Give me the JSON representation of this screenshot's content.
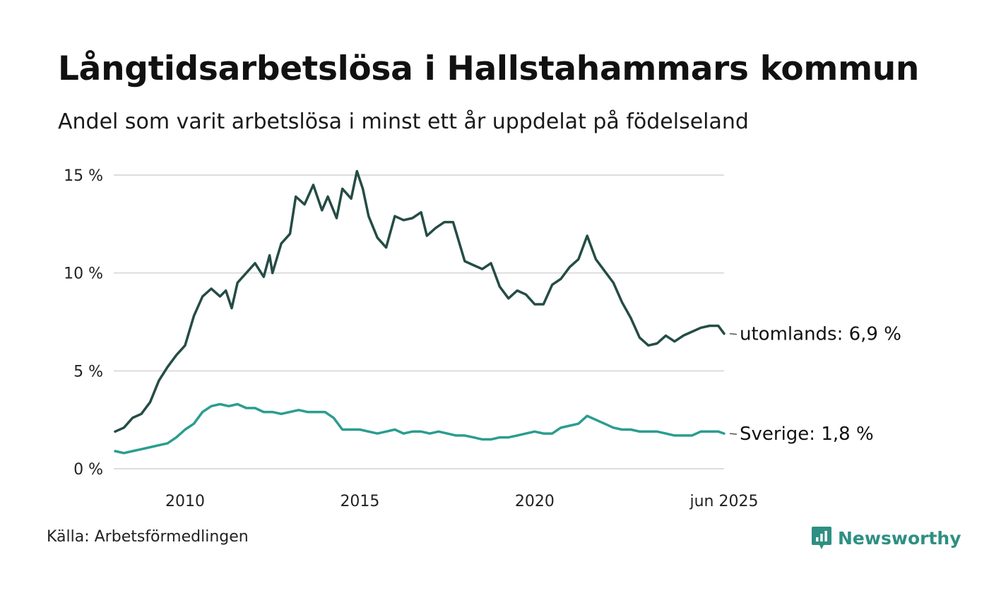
{
  "title": "Långtidsarbetslösa i Hallstahammars kommun",
  "subtitle": "Andel som varit arbetslösa i minst ett år uppdelat på födelseland",
  "source": "Källa: Arbetsförmedlingen",
  "brand": {
    "name": "Newsworthy",
    "icon": "newsworthy-logo-icon",
    "color": "#2f8f83"
  },
  "chart_data": {
    "type": "line",
    "title": "Långtidsarbetslösa i Hallstahammars kommun",
    "subtitle": "Andel som varit arbetslösa i minst ett år uppdelat på födelseland",
    "x_start": "2008-01",
    "x_end": "2025-06",
    "x_tick_labels": [
      {
        "x": "2010-01",
        "label": "2010"
      },
      {
        "x": "2015-01",
        "label": "2015"
      },
      {
        "x": "2020-01",
        "label": "2020"
      },
      {
        "x": "2025-06",
        "label": "jun 2025"
      }
    ],
    "y_ticks": [
      0,
      5,
      10,
      15
    ],
    "y_tick_labels": [
      "0 %",
      "5 %",
      "10 %",
      "15 %"
    ],
    "ylim": [
      0,
      15
    ],
    "grid": true,
    "legend": "none",
    "series": [
      {
        "name": "utomlands",
        "end_label": "utomlands: 6,9 %",
        "color": "#244c45",
        "points": [
          [
            "2008-01",
            1.9
          ],
          [
            "2008-04",
            2.1
          ],
          [
            "2008-07",
            2.6
          ],
          [
            "2008-10",
            2.8
          ],
          [
            "2009-01",
            3.4
          ],
          [
            "2009-04",
            4.5
          ],
          [
            "2009-07",
            5.2
          ],
          [
            "2009-10",
            5.8
          ],
          [
            "2010-01",
            6.3
          ],
          [
            "2010-04",
            7.8
          ],
          [
            "2010-07",
            8.8
          ],
          [
            "2010-10",
            9.2
          ],
          [
            "2011-01",
            8.8
          ],
          [
            "2011-03",
            9.1
          ],
          [
            "2011-05",
            8.2
          ],
          [
            "2011-07",
            9.5
          ],
          [
            "2011-10",
            10.0
          ],
          [
            "2012-01",
            10.5
          ],
          [
            "2012-04",
            9.8
          ],
          [
            "2012-06",
            10.9
          ],
          [
            "2012-07",
            10.0
          ],
          [
            "2012-10",
            11.5
          ],
          [
            "2013-01",
            12.0
          ],
          [
            "2013-03",
            13.9
          ],
          [
            "2013-06",
            13.5
          ],
          [
            "2013-09",
            14.5
          ],
          [
            "2013-12",
            13.2
          ],
          [
            "2014-02",
            13.9
          ],
          [
            "2014-05",
            12.8
          ],
          [
            "2014-07",
            14.3
          ],
          [
            "2014-10",
            13.8
          ],
          [
            "2014-12",
            15.2
          ],
          [
            "2015-02",
            14.3
          ],
          [
            "2015-04",
            12.9
          ],
          [
            "2015-07",
            11.8
          ],
          [
            "2015-10",
            11.3
          ],
          [
            "2016-01",
            12.9
          ],
          [
            "2016-04",
            12.7
          ],
          [
            "2016-07",
            12.8
          ],
          [
            "2016-10",
            13.1
          ],
          [
            "2016-12",
            11.9
          ],
          [
            "2017-03",
            12.3
          ],
          [
            "2017-06",
            12.6
          ],
          [
            "2017-09",
            12.6
          ],
          [
            "2018-01",
            10.6
          ],
          [
            "2018-04",
            10.4
          ],
          [
            "2018-07",
            10.2
          ],
          [
            "2018-10",
            10.5
          ],
          [
            "2019-01",
            9.3
          ],
          [
            "2019-04",
            8.7
          ],
          [
            "2019-07",
            9.1
          ],
          [
            "2019-10",
            8.9
          ],
          [
            "2020-01",
            8.4
          ],
          [
            "2020-04",
            8.4
          ],
          [
            "2020-07",
            9.4
          ],
          [
            "2020-10",
            9.7
          ],
          [
            "2021-01",
            10.3
          ],
          [
            "2021-04",
            10.7
          ],
          [
            "2021-07",
            11.9
          ],
          [
            "2021-10",
            10.7
          ],
          [
            "2022-01",
            10.1
          ],
          [
            "2022-04",
            9.5
          ],
          [
            "2022-07",
            8.5
          ],
          [
            "2022-10",
            7.7
          ],
          [
            "2023-01",
            6.7
          ],
          [
            "2023-04",
            6.3
          ],
          [
            "2023-07",
            6.4
          ],
          [
            "2023-10",
            6.8
          ],
          [
            "2024-01",
            6.5
          ],
          [
            "2024-04",
            6.8
          ],
          [
            "2024-07",
            7.0
          ],
          [
            "2024-10",
            7.2
          ],
          [
            "2025-01",
            7.3
          ],
          [
            "2025-04",
            7.3
          ],
          [
            "2025-06",
            6.9
          ]
        ]
      },
      {
        "name": "Sverige",
        "end_label": "Sverige: 1,8 %",
        "color": "#2a9d8f",
        "points": [
          [
            "2008-01",
            0.9
          ],
          [
            "2008-04",
            0.8
          ],
          [
            "2008-07",
            0.9
          ],
          [
            "2008-10",
            1.0
          ],
          [
            "2009-01",
            1.1
          ],
          [
            "2009-04",
            1.2
          ],
          [
            "2009-07",
            1.3
          ],
          [
            "2009-10",
            1.6
          ],
          [
            "2010-01",
            2.0
          ],
          [
            "2010-04",
            2.3
          ],
          [
            "2010-07",
            2.9
          ],
          [
            "2010-10",
            3.2
          ],
          [
            "2011-01",
            3.3
          ],
          [
            "2011-04",
            3.2
          ],
          [
            "2011-07",
            3.3
          ],
          [
            "2011-10",
            3.1
          ],
          [
            "2012-01",
            3.1
          ],
          [
            "2012-04",
            2.9
          ],
          [
            "2012-07",
            2.9
          ],
          [
            "2012-10",
            2.8
          ],
          [
            "2013-01",
            2.9
          ],
          [
            "2013-04",
            3.0
          ],
          [
            "2013-07",
            2.9
          ],
          [
            "2013-10",
            2.9
          ],
          [
            "2014-01",
            2.9
          ],
          [
            "2014-04",
            2.6
          ],
          [
            "2014-07",
            2.0
          ],
          [
            "2014-10",
            2.0
          ],
          [
            "2015-01",
            2.0
          ],
          [
            "2015-04",
            1.9
          ],
          [
            "2015-07",
            1.8
          ],
          [
            "2015-10",
            1.9
          ],
          [
            "2016-01",
            2.0
          ],
          [
            "2016-04",
            1.8
          ],
          [
            "2016-07",
            1.9
          ],
          [
            "2016-10",
            1.9
          ],
          [
            "2017-01",
            1.8
          ],
          [
            "2017-04",
            1.9
          ],
          [
            "2017-07",
            1.8
          ],
          [
            "2017-10",
            1.7
          ],
          [
            "2018-01",
            1.7
          ],
          [
            "2018-04",
            1.6
          ],
          [
            "2018-07",
            1.5
          ],
          [
            "2018-10",
            1.5
          ],
          [
            "2019-01",
            1.6
          ],
          [
            "2019-04",
            1.6
          ],
          [
            "2019-07",
            1.7
          ],
          [
            "2019-10",
            1.8
          ],
          [
            "2020-01",
            1.9
          ],
          [
            "2020-04",
            1.8
          ],
          [
            "2020-07",
            1.8
          ],
          [
            "2020-10",
            2.1
          ],
          [
            "2021-01",
            2.2
          ],
          [
            "2021-04",
            2.3
          ],
          [
            "2021-07",
            2.7
          ],
          [
            "2021-10",
            2.5
          ],
          [
            "2022-01",
            2.3
          ],
          [
            "2022-04",
            2.1
          ],
          [
            "2022-07",
            2.0
          ],
          [
            "2022-10",
            2.0
          ],
          [
            "2023-01",
            1.9
          ],
          [
            "2023-04",
            1.9
          ],
          [
            "2023-07",
            1.9
          ],
          [
            "2023-10",
            1.8
          ],
          [
            "2024-01",
            1.7
          ],
          [
            "2024-04",
            1.7
          ],
          [
            "2024-07",
            1.7
          ],
          [
            "2024-10",
            1.9
          ],
          [
            "2025-01",
            1.9
          ],
          [
            "2025-04",
            1.9
          ],
          [
            "2025-06",
            1.8
          ]
        ]
      }
    ]
  }
}
